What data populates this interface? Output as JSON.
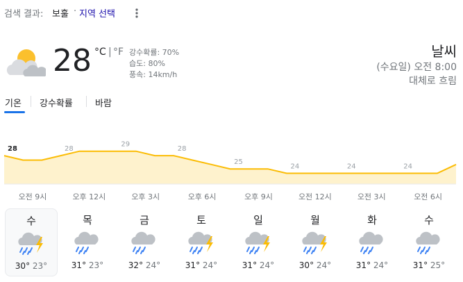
{
  "header": {
    "label": "검색 결과:",
    "location": "보훌",
    "dot": "·",
    "action": "지역 선택"
  },
  "current": {
    "temp": "28",
    "unit_c": "°C",
    "unit_sep": "|",
    "unit_f": "°F",
    "precip": "강수확률: 70%",
    "humidity": "습도: 80%",
    "wind": "풍속: 14km/h"
  },
  "summary": {
    "title": "날씨",
    "time": "(수요일) 오전 8:00",
    "condition": "대체로 흐림"
  },
  "tabs": [
    "기온",
    "강수확률",
    "바람"
  ],
  "hourly_chart": {
    "type": "area",
    "color": "#fbbc04",
    "values": [
      28,
      27,
      27,
      28,
      29,
      29,
      29,
      29,
      28,
      28,
      27,
      26,
      25,
      25,
      25,
      24,
      24,
      24,
      24,
      24,
      24,
      24,
      24,
      24,
      26
    ],
    "categories": [
      "오전 9시",
      null,
      null,
      "오후 12시",
      null,
      null,
      "오후 3시",
      null,
      null,
      "오후 6시",
      null,
      null,
      "오후 9시",
      null,
      null,
      "오전 12시",
      null,
      null,
      "오전 3시",
      null,
      null,
      "오전 6시",
      null,
      null,
      null
    ],
    "ylim": [
      20,
      31
    ]
  },
  "days": [
    {
      "day": "수",
      "high": "30°",
      "low": "23°"
    },
    {
      "day": "목",
      "high": "31°",
      "low": "23°"
    },
    {
      "day": "금",
      "high": "32°",
      "low": "24°"
    },
    {
      "day": "토",
      "high": "31°",
      "low": "24°"
    },
    {
      "day": "일",
      "high": "31°",
      "low": "24°"
    },
    {
      "day": "월",
      "high": "30°",
      "low": "24°"
    },
    {
      "day": "화",
      "high": "31°",
      "low": "24°"
    },
    {
      "day": "수",
      "high": "31°",
      "low": "25°"
    }
  ]
}
